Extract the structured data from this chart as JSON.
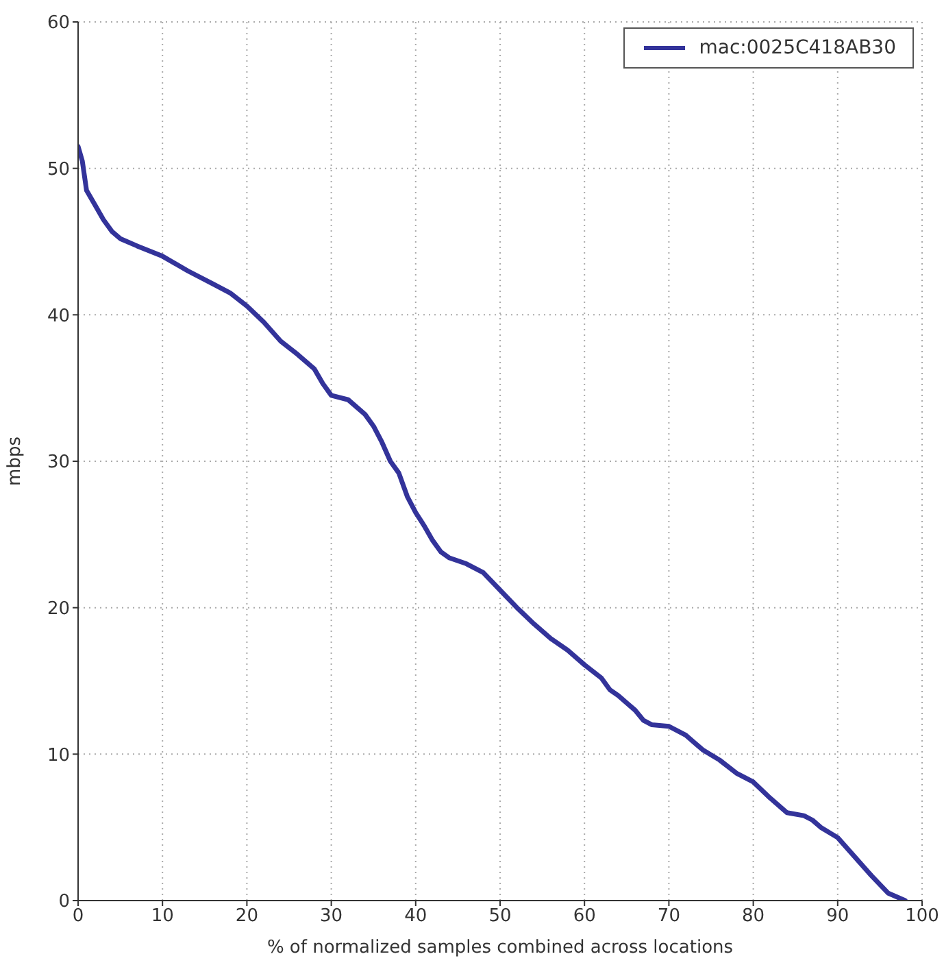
{
  "chart_data": {
    "type": "line",
    "xlabel": "% of normalized samples combined across locations",
    "ylabel": "mbps",
    "xlim": [
      0,
      100
    ],
    "xticks": [
      0,
      10,
      20,
      30,
      40,
      50,
      60,
      70,
      80,
      90,
      100
    ],
    "ylim": [
      0,
      60
    ],
    "yticks": [
      0,
      10,
      20,
      30,
      40,
      50,
      60
    ],
    "grid": true,
    "legend": "top right",
    "marker": "none",
    "line_style": "solid",
    "series": [
      {
        "name": "mac:0025C418AB30",
        "color": "#33339a",
        "x": [
          0,
          0.5,
          1,
          2,
          3,
          4,
          5,
          7,
          10,
          13,
          16,
          18,
          20,
          22,
          24,
          26,
          28,
          29,
          30,
          32,
          34,
          35,
          36,
          37,
          38,
          39,
          40,
          41,
          42,
          43,
          44,
          46,
          48,
          50,
          52,
          54,
          56,
          58,
          60,
          62,
          63,
          64,
          65,
          66,
          67,
          68,
          70,
          72,
          74,
          76,
          78,
          80,
          82,
          84,
          86,
          87,
          88,
          90,
          92,
          94,
          96,
          98
        ],
        "values": [
          51.5,
          50.5,
          48.5,
          47.5,
          46.5,
          45.7,
          45.2,
          44.7,
          44,
          43,
          42.1,
          41.5,
          40.6,
          39.5,
          38.2,
          37.3,
          36.3,
          35.3,
          34.5,
          34.2,
          33.2,
          32.4,
          31.3,
          30,
          29.2,
          27.6,
          26.5,
          25.6,
          24.6,
          23.8,
          23.4,
          23,
          22.4,
          21.2,
          20,
          18.9,
          17.9,
          17.1,
          16.1,
          15.2,
          14.4,
          14,
          13.5,
          13,
          12.3,
          12,
          11.9,
          11.3,
          10.3,
          9.6,
          8.7,
          8.1,
          7,
          6,
          5.8,
          5.5,
          5,
          4.3,
          3,
          1.7,
          0.5,
          0
        ]
      }
    ]
  }
}
